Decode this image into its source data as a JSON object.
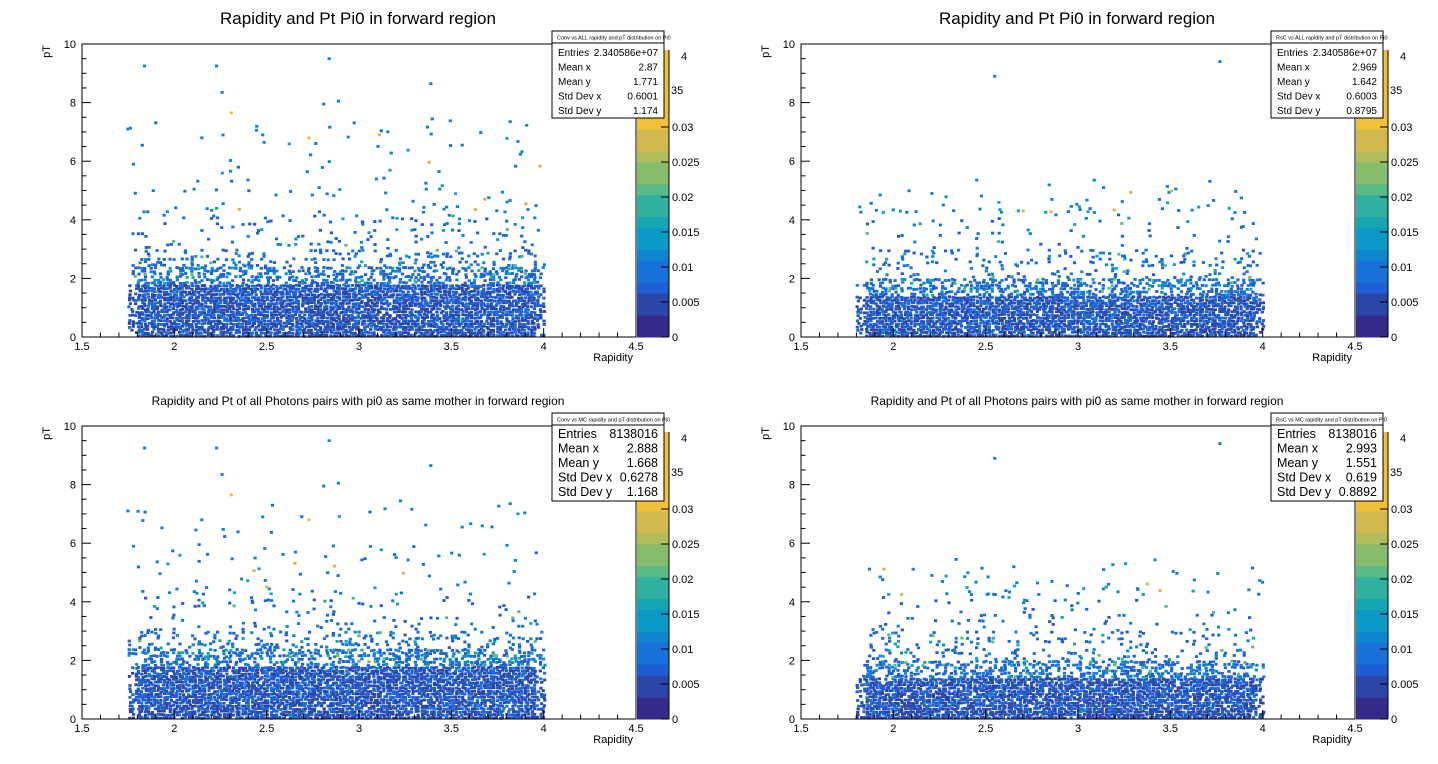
{
  "chart_data": [
    {
      "type": "heatmap",
      "title": "Rapidity and Pt Pi0 in forward region",
      "xlabel": "Rapidity",
      "ylabel": "pT",
      "xlim": [
        1.5,
        4.5
      ],
      "ylim": [
        0,
        10
      ],
      "x_ticks": [
        "1.5",
        "2",
        "2.5",
        "3",
        "3.5",
        "4",
        "4.5"
      ],
      "y_ticks": [
        "0",
        "2",
        "4",
        "6",
        "8",
        "10"
      ],
      "z_ticks": [
        "0",
        "0.005",
        "0.01",
        "0.015",
        "0.02",
        "0.025",
        "0.03"
      ],
      "z_partial": [
        "4",
        "35"
      ],
      "stats": {
        "title": "Conv vs ALL rapidity and pT distribution on Pi0",
        "rows": [
          {
            "name": "Entries",
            "value": "2.340586e+07"
          },
          {
            "name": "Mean x",
            "value": "2.87"
          },
          {
            "name": "Mean y",
            "value": "1.771"
          },
          {
            "name": "Std Dev x",
            "value": "0.6001"
          },
          {
            "name": "Std Dev y",
            "value": "1.174"
          }
        ]
      },
      "data_region": {
        "x": [
          1.75,
          4.0
        ],
        "y": [
          0,
          9.5
        ]
      }
    },
    {
      "type": "heatmap",
      "title": "Rapidity and Pt Pi0 in forward region",
      "xlabel": "Rapidity",
      "ylabel": "pT",
      "xlim": [
        1.5,
        4.5
      ],
      "ylim": [
        0,
        10
      ],
      "x_ticks": [
        "1.5",
        "2",
        "2.5",
        "3",
        "3.5",
        "4",
        "4.5"
      ],
      "y_ticks": [
        "0",
        "2",
        "4",
        "6",
        "8",
        "10"
      ],
      "z_ticks": [
        "0",
        "0.005",
        "0.01",
        "0.015",
        "0.02",
        "0.025",
        "0.03"
      ],
      "z_partial": [
        "4",
        "35"
      ],
      "stats": {
        "title": "RsC vs ALL rapidity and pT distribution on Pi0",
        "rows": [
          {
            "name": "Entries",
            "value": "2.340586e+07"
          },
          {
            "name": "Mean x",
            "value": "2.969"
          },
          {
            "name": "Mean y",
            "value": "1.642"
          },
          {
            "name": "Std Dev x",
            "value": "0.6003"
          },
          {
            "name": "Std Dev y",
            "value": "0.8795"
          }
        ]
      },
      "data_region": {
        "x": [
          1.8,
          4.0
        ],
        "y": [
          0,
          9.4
        ]
      }
    },
    {
      "type": "heatmap",
      "title": "Rapidity and Pt of all Photons pairs with pi0 as same mother in forward region",
      "xlabel": "Rapidity",
      "ylabel": "pT",
      "xlim": [
        1.5,
        4.5
      ],
      "ylim": [
        0,
        10
      ],
      "x_ticks": [
        "1.5",
        "2",
        "2.5",
        "3",
        "3.5",
        "4",
        "4.5"
      ],
      "y_ticks": [
        "0",
        "2",
        "4",
        "6",
        "8",
        "10"
      ],
      "z_ticks": [
        "0",
        "0.005",
        "0.01",
        "0.015",
        "0.02",
        "0.025",
        "0.03"
      ],
      "z_partial": [
        "4",
        "35"
      ],
      "stats": {
        "title": "Conv vs MC rapidity and pT distribution on Pi0",
        "rows": [
          {
            "name": "Entries",
            "value": "8138016"
          },
          {
            "name": "Mean x",
            "value": "2.888"
          },
          {
            "name": "Mean y",
            "value": "1.668"
          },
          {
            "name": "Std Dev x",
            "value": "0.6278"
          },
          {
            "name": "Std Dev y",
            "value": "1.168"
          }
        ]
      },
      "data_region": {
        "x": [
          1.75,
          4.0
        ],
        "y": [
          0,
          9.5
        ]
      }
    },
    {
      "type": "heatmap",
      "title": "Rapidity and Pt of all Photons pairs with pi0 as same mother in forward region",
      "xlabel": "Rapidity",
      "ylabel": "pT",
      "xlim": [
        1.5,
        4.5
      ],
      "ylim": [
        0,
        10
      ],
      "x_ticks": [
        "1.5",
        "2",
        "2.5",
        "3",
        "3.5",
        "4",
        "4.5"
      ],
      "y_ticks": [
        "0",
        "2",
        "4",
        "6",
        "8",
        "10"
      ],
      "z_ticks": [
        "0",
        "0.005",
        "0.01",
        "0.015",
        "0.02",
        "0.025",
        "0.03"
      ],
      "z_partial": [
        "4",
        "35"
      ],
      "stats": {
        "title": "RsC vs MC rapidity and pT distribution on Pi0",
        "rows": [
          {
            "name": "Entries",
            "value": "8138016"
          },
          {
            "name": "Mean x",
            "value": "2.993"
          },
          {
            "name": "Mean y",
            "value": "1.551"
          },
          {
            "name": "Std Dev x",
            "value": "0.619"
          },
          {
            "name": "Std Dev y",
            "value": "0.8892"
          }
        ]
      },
      "data_region": {
        "x": [
          1.8,
          4.0
        ],
        "y": [
          0,
          9.4
        ]
      }
    }
  ],
  "palette": [
    "#352a87",
    "#2a46a8",
    "#1f5dd4",
    "#1672d8",
    "#0e86d0",
    "#0b99c6",
    "#15a6b4",
    "#30b19f",
    "#59ba86",
    "#85bd6c",
    "#b2bc5a",
    "#d2b94e",
    "#f0c03a"
  ]
}
